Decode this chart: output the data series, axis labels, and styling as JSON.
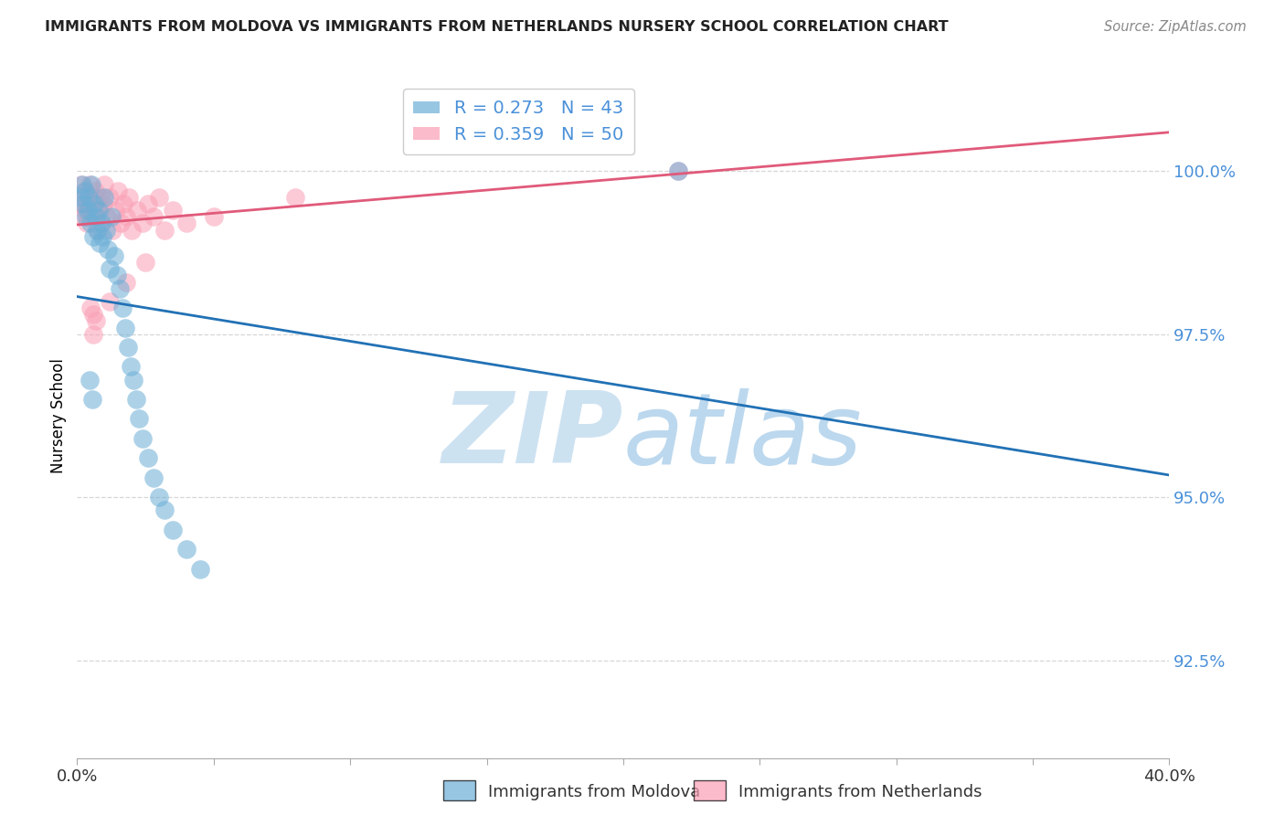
{
  "title": "IMMIGRANTS FROM MOLDOVA VS IMMIGRANTS FROM NETHERLANDS NURSERY SCHOOL CORRELATION CHART",
  "source": "Source: ZipAtlas.com",
  "ylabel": "Nursery School",
  "ytick_values": [
    92.5,
    95.0,
    97.5,
    100.0
  ],
  "xlim": [
    0.0,
    40.0
  ],
  "ylim": [
    91.0,
    101.5
  ],
  "legend_moldova": "Immigrants from Moldova",
  "legend_netherlands": "Immigrants from Netherlands",
  "R_moldova": 0.273,
  "N_moldova": 43,
  "R_netherlands": 0.359,
  "N_netherlands": 50,
  "color_moldova": "#6baed6",
  "color_netherlands": "#fa9fb5",
  "trendline_color_moldova": "#2171b5",
  "trendline_color_netherlands": "#e05a7a",
  "moldova_x": [
    0.12,
    0.18,
    0.22,
    0.28,
    0.32,
    0.38,
    0.42,
    0.48,
    0.52,
    0.58,
    0.62,
    0.68,
    0.72,
    0.78,
    0.82,
    0.88,
    0.92,
    0.98,
    1.05,
    1.12,
    1.18,
    1.25,
    1.35,
    1.45,
    1.55,
    1.65,
    1.75,
    1.85,
    1.95,
    2.05,
    2.15,
    2.25,
    2.4,
    2.6,
    2.8,
    3.0,
    3.2,
    3.5,
    4.0,
    4.5,
    0.45,
    0.55,
    22.0
  ],
  "moldova_y": [
    99.6,
    99.8,
    99.5,
    99.7,
    99.3,
    99.4,
    99.6,
    99.2,
    99.8,
    99.0,
    99.5,
    99.3,
    99.1,
    99.4,
    98.9,
    99.2,
    99.0,
    99.6,
    99.1,
    98.8,
    98.5,
    99.3,
    98.7,
    98.4,
    98.2,
    97.9,
    97.6,
    97.3,
    97.0,
    96.8,
    96.5,
    96.2,
    95.9,
    95.6,
    95.3,
    95.0,
    94.8,
    94.5,
    94.2,
    93.9,
    96.8,
    96.5,
    100.0
  ],
  "netherlands_x": [
    0.1,
    0.15,
    0.2,
    0.25,
    0.3,
    0.35,
    0.4,
    0.45,
    0.5,
    0.55,
    0.6,
    0.65,
    0.7,
    0.75,
    0.8,
    0.85,
    0.9,
    0.95,
    1.0,
    1.1,
    1.2,
    1.3,
    1.4,
    1.5,
    1.6,
    1.7,
    1.8,
    1.9,
    2.0,
    2.2,
    2.4,
    2.6,
    2.8,
    3.0,
    3.2,
    3.5,
    4.0,
    0.5,
    0.6,
    0.7,
    1.2,
    1.8,
    2.5,
    5.0,
    8.0,
    22.0,
    0.3,
    0.4,
    0.5,
    0.6
  ],
  "netherlands_y": [
    99.5,
    99.8,
    99.3,
    99.6,
    99.7,
    99.2,
    99.5,
    99.8,
    99.4,
    99.6,
    99.3,
    99.7,
    99.5,
    99.1,
    99.4,
    99.6,
    99.2,
    99.5,
    99.8,
    99.3,
    99.6,
    99.1,
    99.4,
    99.7,
    99.2,
    99.5,
    99.3,
    99.6,
    99.1,
    99.4,
    99.2,
    99.5,
    99.3,
    99.6,
    99.1,
    99.4,
    99.2,
    97.9,
    97.5,
    97.7,
    98.0,
    98.3,
    98.6,
    99.3,
    99.6,
    100.0,
    99.4,
    99.5,
    99.6,
    97.8
  ],
  "watermark_zip": "ZIP",
  "watermark_atlas": "atlas",
  "background_color": "#ffffff",
  "grid_color": "#cccccc",
  "ytick_color": "#4a90d9",
  "xtick_color": "#333333"
}
